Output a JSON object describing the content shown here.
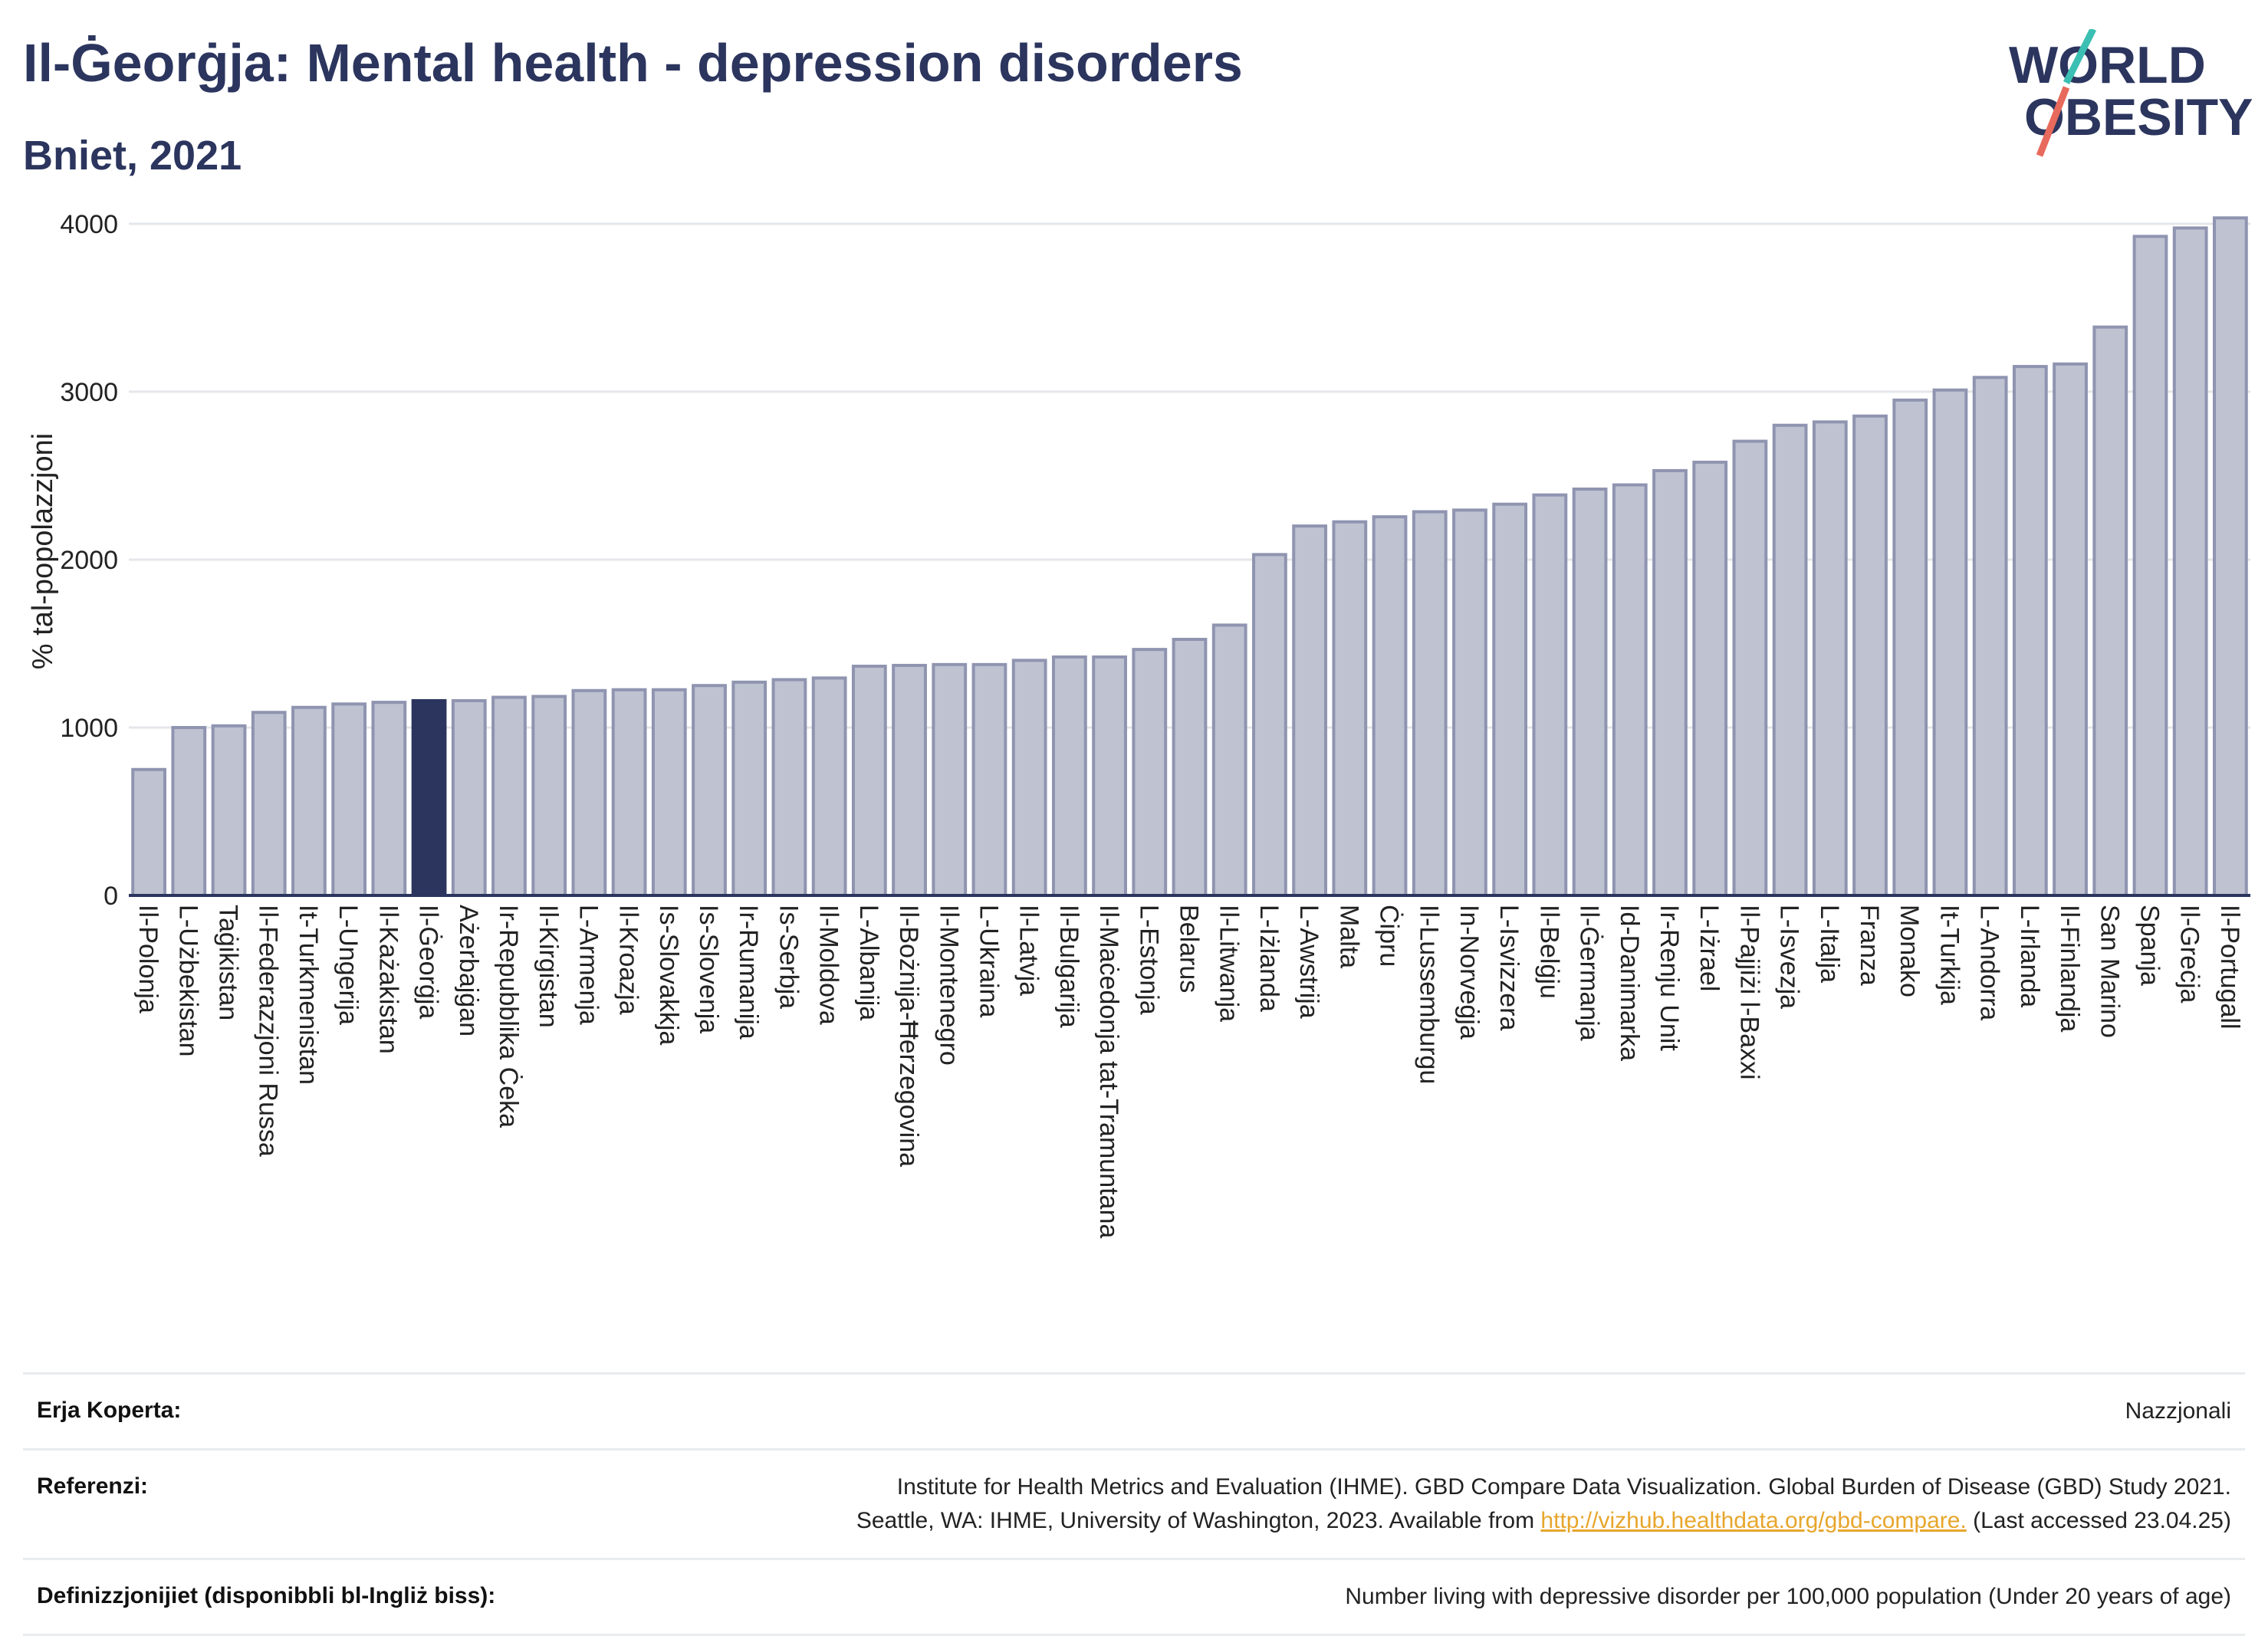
{
  "title": "Il-Ġeorġja: Mental health - depression disorders",
  "subtitle": "Bniet, 2021",
  "logo": {
    "line1": "WORLD",
    "line2": "OBESITY"
  },
  "colors": {
    "bar": "#bfc2d1",
    "bar_stroke": "#8f94b0",
    "highlight": "#2b355e",
    "grid": "#e4e6ea",
    "axis": "#2b355e"
  },
  "chart_data": {
    "type": "bar",
    "ylabel": "% tal-popolazzjoni",
    "ylim": [
      0,
      4100
    ],
    "yticks": [
      0,
      1000,
      2000,
      3000,
      4000
    ],
    "highlight": "Il-Ġeorġja",
    "categories": [
      "Il-Polonja",
      "L-Użbekistan",
      "Taġikistan",
      "Il-Federazzjoni Russa",
      "It-Turkmenistan",
      "L-Ungerija",
      "Il-Każakistan",
      "Il-Ġeorġja",
      "Ażerbajġan",
      "Ir-Repubblika Ċeka",
      "Il-Kirgistan",
      "L-Armenja",
      "Il-Kroazja",
      "Is-Slovakkja",
      "Is-Slovenja",
      "Ir-Rumanija",
      "Is-Serbja",
      "Il-Moldova",
      "L-Albanija",
      "Il-Bożnija-Ħerzegovina",
      "Il-Montenegro",
      "L-Ukraina",
      "Il-Latvja",
      "Il-Bulgarija",
      "Il-Maċedonja tat-Tramuntana",
      "L-Estonja",
      "Belarus",
      "Il-Litwanja",
      "L-Iżlanda",
      "L-Awstrija",
      "Malta",
      "Ċipru",
      "Il-Lussemburgu",
      "In-Norveġja",
      "L-Isvizzera",
      "Il-Belġju",
      "Il-Ġermanja",
      "Id-Danimarka",
      "Ir-Renju Unit",
      "L-Iżrael",
      "Il-Pajjiżi l-Baxxi",
      "L-Isvezja",
      "L-Italja",
      "Franza",
      "Monako",
      "It-Turkija",
      "L-Andorra",
      "L-Irlanda",
      "Il-Finlandja",
      "San Marino",
      "Spanja",
      "Il-Greċja",
      "Il-Portugall"
    ],
    "values": [
      750,
      1000,
      1010,
      1090,
      1120,
      1140,
      1150,
      1160,
      1160,
      1180,
      1185,
      1220,
      1225,
      1225,
      1250,
      1270,
      1285,
      1295,
      1365,
      1370,
      1375,
      1375,
      1400,
      1420,
      1420,
      1465,
      1525,
      1610,
      2030,
      2200,
      2225,
      2255,
      2285,
      2295,
      2330,
      2385,
      2420,
      2445,
      2530,
      2580,
      2705,
      2800,
      2820,
      2855,
      2950,
      3010,
      3085,
      3150,
      3165,
      3385,
      3925,
      3975,
      4035
    ]
  },
  "footer": {
    "coverage": {
      "label": "Erja Koperta:",
      "value": "Nazzjonali"
    },
    "references": {
      "label": "Referenzi:",
      "line1": "Institute for Health Metrics and Evaluation (IHME). GBD Compare Data Visualization. Global Burden of Disease (GBD) Study 2021.",
      "line2_pre": "Seattle, WA: IHME, University of Washington, 2023. Available from ",
      "link": "http://vizhub.healthdata.org/gbd-compare.",
      "line2_post": " (Last accessed 23.04.25)"
    },
    "definitions": {
      "label": "Definizzjonijiet (disponibbli bl-Ingliż biss):",
      "value": "Number living with depressive disorder per 100,000 population (Under 20 years of age)"
    }
  }
}
